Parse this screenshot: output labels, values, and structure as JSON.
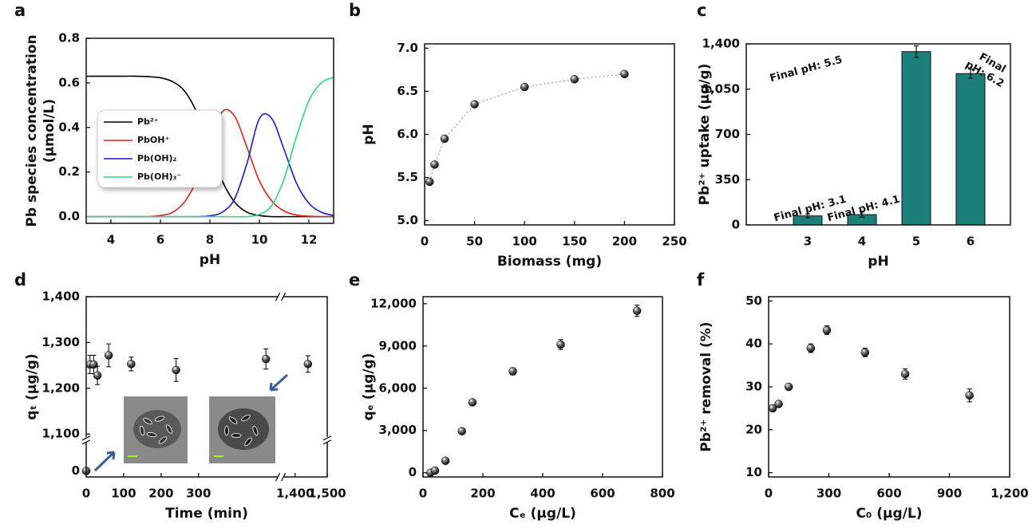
{
  "chart_data": [
    {
      "type": "line",
      "label": "a",
      "xlabel": "pH",
      "ylabel": [
        "Pb species concentration",
        "(μmol/L)"
      ],
      "x": [
        3,
        3.5,
        4,
        4.5,
        5,
        5.5,
        6,
        6.5,
        7,
        7.5,
        8,
        8.5,
        9,
        9.5,
        10,
        10.5,
        11,
        11.5,
        12,
        12.5,
        13
      ],
      "series": [
        {
          "name": "Pb²⁺",
          "color": "#000000",
          "values": [
            0.63,
            0.63,
            0.63,
            0.63,
            0.63,
            0.628,
            0.623,
            0.605,
            0.56,
            0.46,
            0.31,
            0.16,
            0.065,
            0.02,
            0.005,
            0,
            0,
            0,
            0,
            0,
            0
          ]
        },
        {
          "name": "PbOH⁺",
          "color": "#e0201b",
          "values": [
            0,
            0,
            0,
            0,
            0,
            0,
            0.005,
            0.02,
            0.07,
            0.17,
            0.32,
            0.47,
            0.45,
            0.31,
            0.16,
            0.07,
            0.025,
            0.007,
            0.002,
            0,
            0
          ]
        },
        {
          "name": "Pb(OH)₂",
          "color": "#1a1acc",
          "values": [
            0,
            0,
            0,
            0,
            0,
            0,
            0,
            0,
            0,
            0,
            0.004,
            0.02,
            0.08,
            0.24,
            0.44,
            0.44,
            0.3,
            0.15,
            0.06,
            0.02,
            0.005
          ]
        },
        {
          "name": "Pb(OH)₃⁻",
          "color": "#2fd67a",
          "values": [
            0,
            0,
            0,
            0,
            0,
            0,
            0,
            0,
            0,
            0,
            0,
            0,
            0,
            0,
            0.01,
            0.05,
            0.17,
            0.36,
            0.52,
            0.6,
            0.625
          ]
        }
      ],
      "xlim": [
        3,
        13
      ],
      "xticks": [
        4,
        6,
        8,
        10,
        12
      ],
      "ylim": [
        -0.03,
        0.8
      ],
      "yticks": [
        {
          "value": 0,
          "label": "0.0"
        },
        0.2,
        0.4,
        0.6,
        0.8
      ],
      "legend": "left"
    },
    {
      "type": "scatter",
      "label": "b",
      "xlabel": "Biomass (mg)",
      "ylabel": "pH",
      "connect": true,
      "x": [
        5,
        10,
        20,
        50,
        100,
        150,
        200
      ],
      "values": [
        5.45,
        5.65,
        5.95,
        6.35,
        6.55,
        6.64,
        6.7
      ],
      "xlim": [
        0,
        250
      ],
      "xticks": [
        0,
        50,
        100,
        150,
        200,
        250
      ],
      "ylim": [
        4.95,
        7.05
      ],
      "yticks": [
        {
          "value": 5,
          "label": "5.0"
        },
        5.5,
        {
          "value": 6,
          "label": "6.0"
        },
        6.5,
        {
          "value": 7,
          "label": "7.0"
        }
      ]
    },
    {
      "type": "bar",
      "label": "c",
      "xlabel": "pH",
      "ylabel": "Pb²⁺ uptake (μg/g)",
      "color": "#1b7f7a",
      "categories": [
        "3",
        "4",
        "5",
        "6"
      ],
      "values": [
        70,
        80,
        1340,
        1170
      ],
      "errors": [
        15,
        20,
        45,
        35
      ],
      "annotations": [
        "Final pH: 3.1",
        "Final pH: 4.1",
        "Final pH: 5.5",
        "Final pH: 6.2"
      ],
      "ylim": [
        0,
        1400
      ],
      "yticks": [
        0,
        350,
        700,
        {
          "value": 1050,
          "label": "1,050"
        },
        {
          "value": 1400,
          "label": "1,400"
        }
      ]
    },
    {
      "type": "scatter",
      "label": "d",
      "xlabel": "Time (min)",
      "ylabel": "qₜ (μg/g)",
      "x": [
        0,
        10,
        20,
        30,
        60,
        120,
        240,
        480,
        1440
      ],
      "values": [
        0,
        1252,
        1252,
        1228,
        1272,
        1253,
        1240,
        1264,
        1253
      ],
      "errors": [
        0,
        20,
        20,
        20,
        25,
        15,
        25,
        22,
        18
      ],
      "xlim": [
        0,
        1500
      ],
      "xbreak": [
        515,
        1350
      ],
      "xticks": [
        0,
        100,
        200,
        300,
        {
          "value": 1400,
          "label": "1,400"
        },
        {
          "value": 1500,
          "label": "1,500"
        }
      ],
      "ylim": [
        -8,
        1400
      ],
      "ybreak": [
        40,
        1085
      ],
      "yticks": [
        0,
        {
          "value": 1100,
          "label": "1,100"
        },
        {
          "value": 1200,
          "label": "1,200"
        },
        {
          "value": 1300,
          "label": "1,300"
        },
        {
          "value": 1400,
          "label": "1,400"
        }
      ]
    },
    {
      "type": "scatter",
      "label": "e",
      "xlabel": "Cₑ (μg/L)",
      "ylabel": "qₑ (μg/g)",
      "x": [
        25,
        40,
        75,
        130,
        165,
        300,
        460,
        715
      ],
      "values": [
        0,
        150,
        850,
        2950,
        5000,
        7200,
        9100,
        11500
      ],
      "errors": [
        100,
        100,
        100,
        100,
        200,
        250,
        350,
        400
      ],
      "xlim": [
        0,
        800
      ],
      "xticks": [
        0,
        200,
        400,
        600,
        800
      ],
      "ylim": [
        -300,
        12500
      ],
      "yticks": [
        0,
        {
          "value": 3000,
          "label": "3,000"
        },
        {
          "value": 6000,
          "label": "6,000"
        },
        {
          "value": 9000,
          "label": "9,000"
        },
        {
          "value": 12000,
          "label": "12,000"
        }
      ]
    },
    {
      "type": "scatter",
      "label": "f",
      "xlabel": "C₀ (μg/L)",
      "ylabel": "Pb²⁺ removal (%)",
      "x": [
        20,
        50,
        100,
        210,
        290,
        480,
        680,
        1000
      ],
      "values": [
        25,
        26,
        30,
        39,
        43.2,
        38,
        33,
        28
      ],
      "errors": [
        0.5,
        0.5,
        0.7,
        1,
        1,
        1,
        1.2,
        1.5
      ],
      "xlim": [
        0,
        1200
      ],
      "xticks": [
        0,
        300,
        600,
        900,
        {
          "value": 1200,
          "label": "1,200"
        }
      ],
      "ylim": [
        9,
        51
      ],
      "yticks": [
        10,
        20,
        30,
        40,
        50
      ]
    }
  ]
}
